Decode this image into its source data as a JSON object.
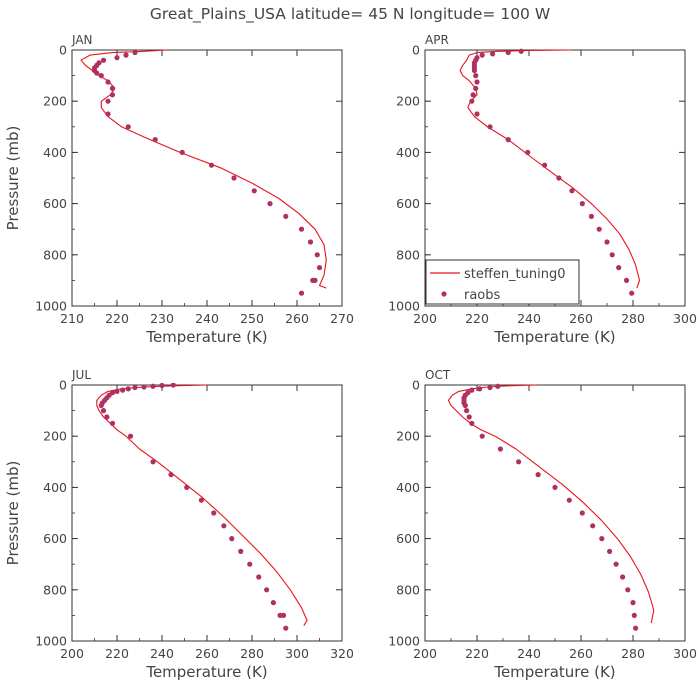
{
  "title": "Great_Plains_USA  latitude= 45 N longitude= 100 W",
  "colors": {
    "model": "#e8141c",
    "obs": "#b03060",
    "axis": "#333333",
    "text": "#555555"
  },
  "chart_data": [
    {
      "type": "line",
      "panel_label": "JAN",
      "xlabel": "Temperature (K)",
      "ylabel": "Pressure (mb)",
      "xlim": [
        210,
        270
      ],
      "ylim": [
        1000,
        0
      ],
      "xticks": [
        210,
        220,
        230,
        240,
        250,
        260,
        270
      ],
      "yticks": [
        0,
        200,
        400,
        600,
        800,
        1000
      ],
      "series": [
        {
          "name": "steffen_tuning0",
          "kind": "line",
          "x": [
            231,
            226,
            219,
            214,
            212,
            213,
            214.5,
            216,
            218,
            219.5,
            218.5,
            216.5,
            216.5,
            218,
            221,
            226,
            234,
            243,
            250,
            256,
            260.5,
            264,
            266,
            266.5,
            266,
            265,
            266.5
          ],
          "y": [
            0,
            5,
            10,
            20,
            40,
            60,
            80,
            100,
            120,
            150,
            175,
            200,
            225,
            260,
            300,
            340,
            400,
            460,
            520,
            580,
            640,
            700,
            760,
            820,
            880,
            920,
            930
          ]
        },
        {
          "name": "raobs",
          "kind": "scatter",
          "x": [
            224,
            222,
            220,
            217,
            216,
            215.5,
            215,
            215,
            215.5,
            216.5,
            218,
            219,
            219,
            218,
            218,
            222.5,
            228.5,
            234.5,
            241,
            246,
            250.5,
            254,
            257.5,
            261,
            263,
            264.5,
            265,
            264,
            263.5,
            261
          ],
          "y": [
            10,
            20,
            30,
            40,
            50,
            60,
            70,
            80,
            90,
            100,
            125,
            150,
            175,
            200,
            250,
            300,
            350,
            400,
            450,
            500,
            550,
            600,
            650,
            700,
            750,
            800,
            850,
            900,
            900,
            950
          ]
        }
      ]
    },
    {
      "type": "line",
      "panel_label": "APR",
      "xlabel": "Temperature (K)",
      "ylabel": "",
      "xlim": [
        200,
        300
      ],
      "ylim": [
        1000,
        0
      ],
      "xticks": [
        200,
        220,
        240,
        260,
        280,
        300
      ],
      "yticks": [
        0,
        200,
        400,
        600,
        800,
        1000
      ],
      "legend": {
        "position": "lower-left",
        "entries": [
          "steffen_tuning0",
          "raobs"
        ]
      },
      "series": [
        {
          "name": "steffen_tuning0",
          "kind": "line",
          "x": [
            256,
            240,
            228,
            220,
            217,
            216,
            214.5,
            213.5,
            214.5,
            217,
            219.5,
            220,
            217.5,
            216.5,
            219,
            224,
            232,
            241,
            249,
            257,
            264,
            270,
            275,
            278.5,
            281,
            282.5,
            281.5
          ],
          "y": [
            0,
            2,
            5,
            10,
            20,
            40,
            60,
            80,
            100,
            120,
            150,
            175,
            200,
            225,
            260,
            300,
            350,
            420,
            480,
            540,
            600,
            660,
            720,
            780,
            840,
            900,
            930
          ]
        },
        {
          "name": "raobs",
          "kind": "scatter",
          "x": [
            237,
            232,
            226,
            222,
            220,
            219.5,
            219,
            219,
            219,
            219,
            219.5,
            220,
            219.5,
            218.5,
            218,
            220,
            225,
            232,
            239.5,
            246,
            251.5,
            256.5,
            260.5,
            264,
            267,
            270,
            272,
            274.5,
            277.5,
            279.5
          ],
          "y": [
            5,
            10,
            15,
            20,
            30,
            40,
            50,
            60,
            70,
            80,
            100,
            125,
            150,
            175,
            200,
            250,
            300,
            350,
            400,
            450,
            500,
            550,
            600,
            650,
            700,
            750,
            800,
            850,
            900,
            950
          ]
        }
      ]
    },
    {
      "type": "line",
      "panel_label": "JUL",
      "xlabel": "Temperature (K)",
      "ylabel": "Pressure (mb)",
      "xlim": [
        200,
        320
      ],
      "ylim": [
        1000,
        0
      ],
      "xticks": [
        200,
        220,
        240,
        260,
        280,
        300,
        320
      ],
      "yticks": [
        0,
        200,
        400,
        600,
        800,
        1000
      ],
      "series": [
        {
          "name": "steffen_tuning0",
          "kind": "line",
          "x": [
            260,
            245,
            232,
            222,
            216,
            213,
            211,
            211,
            212,
            214,
            217,
            220,
            224,
            230,
            238,
            248,
            258,
            268,
            276,
            284,
            291,
            297,
            302,
            304.5,
            303
          ],
          "y": [
            0,
            3,
            8,
            15,
            25,
            40,
            60,
            80,
            100,
            125,
            150,
            175,
            200,
            250,
            300,
            370,
            440,
            520,
            590,
            660,
            730,
            800,
            870,
            920,
            940
          ]
        },
        {
          "name": "raobs",
          "kind": "scatter",
          "x": [
            245,
            240,
            236,
            232,
            228,
            225,
            222.5,
            220,
            218,
            216.5,
            215.5,
            214.5,
            213.5,
            213,
            214,
            215.5,
            218,
            226,
            236,
            244,
            251,
            257.5,
            263,
            267.5,
            271,
            275,
            279,
            283,
            286.5,
            289.5,
            292.5,
            294,
            295
          ],
          "y": [
            0,
            2,
            5,
            8,
            10,
            15,
            20,
            25,
            30,
            40,
            50,
            60,
            70,
            80,
            100,
            125,
            150,
            200,
            300,
            350,
            400,
            450,
            500,
            550,
            600,
            650,
            700,
            750,
            800,
            850,
            900,
            900,
            950
          ]
        }
      ]
    },
    {
      "type": "line",
      "panel_label": "OCT",
      "xlabel": "Temperature (K)",
      "ylabel": "",
      "xlim": [
        200,
        300
      ],
      "ylim": [
        1000,
        0
      ],
      "xticks": [
        200,
        220,
        240,
        260,
        280,
        300
      ],
      "yticks": [
        0,
        200,
        400,
        600,
        800,
        1000
      ],
      "series": [
        {
          "name": "steffen_tuning0",
          "kind": "line",
          "x": [
            243,
            232,
            224,
            218,
            213,
            210.5,
            209,
            210,
            212,
            214.5,
            217.5,
            221.5,
            227,
            235,
            244,
            253,
            261,
            268,
            274,
            279,
            283,
            286,
            288,
            287
          ],
          "y": [
            0,
            3,
            8,
            15,
            25,
            40,
            60,
            80,
            100,
            125,
            150,
            175,
            200,
            250,
            320,
            390,
            460,
            530,
            600,
            670,
            740,
            810,
            880,
            930
          ]
        },
        {
          "name": "raobs",
          "kind": "scatter",
          "x": [
            228,
            225,
            221,
            218,
            216.5,
            215.5,
            215,
            215,
            215,
            215.5,
            216,
            217,
            218,
            222,
            229,
            236,
            243.5,
            250,
            255.5,
            260.5,
            264.5,
            268,
            271,
            273.5,
            276,
            278,
            280,
            280.5,
            281
          ],
          "y": [
            5,
            10,
            15,
            20,
            30,
            40,
            50,
            60,
            70,
            80,
            100,
            125,
            150,
            200,
            250,
            300,
            350,
            400,
            450,
            500,
            550,
            600,
            650,
            700,
            750,
            800,
            850,
            900,
            950
          ]
        }
      ]
    }
  ]
}
